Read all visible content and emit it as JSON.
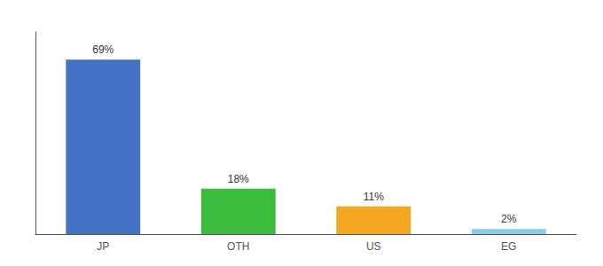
{
  "chart_data": {
    "type": "bar",
    "categories": [
      "JP",
      "OTH",
      "US",
      "EG"
    ],
    "values": [
      69,
      18,
      11,
      2
    ],
    "value_labels": [
      "69%",
      "18%",
      "11%",
      "2%"
    ],
    "data_labels": true,
    "colors": [
      "#4472c4",
      "#3dbb3d",
      "#f5a623",
      "#87ceeb"
    ],
    "ylim": [
      0,
      80
    ],
    "grid": false,
    "tick_labels": "x"
  }
}
